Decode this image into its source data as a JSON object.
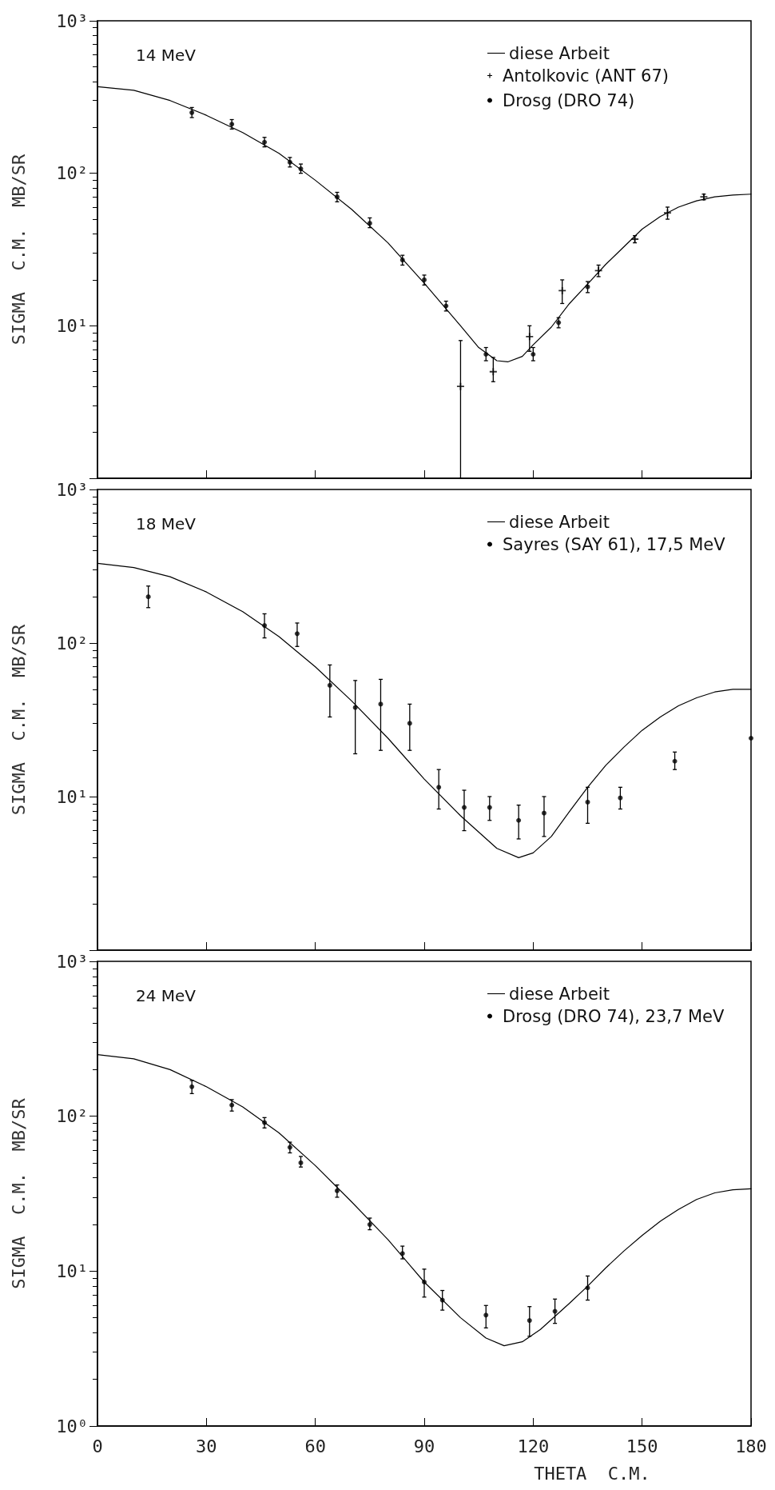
{
  "chart_data": [
    {
      "type": "scatter",
      "title": "14 MeV",
      "ylabel": "SIGMA  C.M.  MB/SR",
      "log": "y",
      "xlim": [
        0,
        180
      ],
      "xticks": [
        0,
        30,
        60,
        90,
        120,
        150,
        180
      ],
      "ylim": [
        1,
        1000
      ],
      "yticks": [
        {
          "value": 1,
          "label": null
        },
        {
          "value": 10,
          "label": "10¹"
        },
        {
          "value": 100,
          "label": "10²"
        },
        {
          "value": 1000,
          "label": "10³"
        }
      ],
      "tick_labels": "y",
      "grid": false,
      "legend": "top right",
      "series": [
        {
          "name": "diese Arbeit",
          "type": "line",
          "marker": "none",
          "line_style": "solid",
          "color": "#000000",
          "x": [
            0,
            10,
            20,
            30,
            40,
            50,
            60,
            70,
            80,
            90,
            100,
            105,
            110,
            113,
            117,
            120,
            125,
            130,
            135,
            140,
            145,
            150,
            155,
            160,
            165,
            170,
            175,
            180
          ],
          "values": [
            370,
            350,
            300,
            240,
            185,
            135,
            90,
            58,
            35,
            19,
            10,
            7.2,
            5.9,
            5.8,
            6.3,
            7.5,
            9.8,
            14,
            18.8,
            25.3,
            33,
            43,
            52,
            60,
            66,
            70,
            72,
            73
          ]
        },
        {
          "name": "Antolkovic (ANT 67)",
          "marker": "cross",
          "color": "#000000",
          "x": [
            100,
            109,
            119,
            128,
            138,
            148,
            157,
            167
          ],
          "values": [
            4,
            5,
            8.5,
            17,
            23,
            37,
            55,
            70
          ],
          "errors": [
            [
              1,
              8
            ],
            [
              4.3,
              6.2
            ],
            [
              6.8,
              10
            ],
            [
              14,
              20
            ],
            [
              21,
              25
            ],
            [
              35,
              39
            ],
            [
              50,
              60
            ],
            [
              67,
              73
            ]
          ]
        },
        {
          "name": "Drosg (DRO 74)",
          "marker": "circle",
          "color": "#000000",
          "x": [
            26,
            37,
            46,
            53,
            56,
            66,
            75,
            84,
            90,
            96,
            107,
            120,
            127,
            135
          ],
          "values": [
            250,
            210,
            160,
            118,
            107,
            70,
            47,
            27,
            20,
            13.5,
            6.5,
            6.5,
            10.5,
            18
          ],
          "errors": [
            [
              232,
              270
            ],
            [
              195,
              225
            ],
            [
              149,
              172
            ],
            [
              110,
              127
            ],
            [
              100,
              115
            ],
            [
              65,
              75
            ],
            [
              44,
              51
            ],
            [
              25,
              29
            ],
            [
              18.5,
              21.5
            ],
            [
              12.5,
              14.5
            ],
            [
              5.9,
              7.2
            ],
            [
              5.9,
              7.2
            ],
            [
              9.7,
              11.3
            ],
            [
              16.5,
              19.5
            ]
          ]
        }
      ]
    },
    {
      "type": "scatter",
      "title": "18 MeV",
      "ylabel": "SIGMA  C.M.  MB/SR",
      "log": "y",
      "xlim": [
        0,
        180
      ],
      "xticks": [
        0,
        30,
        60,
        90,
        120,
        150,
        180
      ],
      "ylim": [
        1,
        1000
      ],
      "yticks": [
        {
          "value": 1,
          "label": null
        },
        {
          "value": 10,
          "label": "10¹"
        },
        {
          "value": 100,
          "label": "10²"
        },
        {
          "value": 1000,
          "label": "10³"
        }
      ],
      "tick_labels": "y",
      "grid": false,
      "legend": "top right",
      "series": [
        {
          "name": "diese Arbeit",
          "type": "line",
          "marker": "none",
          "line_style": "solid",
          "color": "#000000",
          "x": [
            0,
            10,
            20,
            30,
            40,
            50,
            60,
            70,
            80,
            90,
            100,
            110,
            116,
            120,
            125,
            130,
            135,
            140,
            145,
            150,
            155,
            160,
            165,
            170,
            175,
            180
          ],
          "values": [
            330,
            310,
            270,
            215,
            160,
            110,
            70,
            42,
            24,
            13,
            7.5,
            4.6,
            4,
            4.3,
            5.5,
            8,
            11.5,
            16,
            21,
            27,
            33,
            39,
            44,
            48,
            50,
            50
          ]
        },
        {
          "name": "Sayres (SAY 61), 17,5 MeV",
          "marker": "circle",
          "color": "#000000",
          "x": [
            14,
            46,
            55,
            64,
            71,
            78,
            86,
            94,
            101,
            108,
            116,
            123,
            135,
            144,
            159,
            180
          ],
          "values": [
            200,
            130,
            115,
            53,
            38,
            40,
            30,
            11.5,
            8.5,
            8.5,
            7,
            7.8,
            9.2,
            9.8,
            17,
            24
          ],
          "errors": [
            [
              170,
              235
            ],
            [
              108,
              155
            ],
            [
              95,
              135
            ],
            [
              33,
              72
            ],
            [
              19,
              57
            ],
            [
              20,
              58
            ],
            [
              20,
              40
            ],
            [
              8.3,
              15
            ],
            [
              6,
              11
            ],
            [
              7,
              10
            ],
            [
              5.3,
              8.8
            ],
            [
              5.5,
              10
            ],
            [
              6.7,
              11.5
            ],
            [
              8.3,
              11.5
            ],
            [
              15,
              19.5
            ],
            null
          ]
        }
      ]
    },
    {
      "type": "scatter",
      "title": "24 MeV",
      "xlabel": "THETA  C.M.",
      "ylabel": "SIGMA  C.M.  MB/SR",
      "log": "y",
      "xlim": [
        0,
        180
      ],
      "xticks": [
        0,
        30,
        60,
        90,
        120,
        150,
        180
      ],
      "ylim": [
        1,
        1000
      ],
      "yticks": [
        {
          "value": 1,
          "label": "10⁰"
        },
        {
          "value": 10,
          "label": "10¹"
        },
        {
          "value": 100,
          "label": "10²"
        },
        {
          "value": 1000,
          "label": "10³"
        }
      ],
      "grid": false,
      "legend": "top right",
      "series": [
        {
          "name": "diese Arbeit",
          "type": "line",
          "marker": "none",
          "line_style": "solid",
          "color": "#000000",
          "x": [
            0,
            10,
            20,
            30,
            40,
            50,
            60,
            70,
            80,
            90,
            100,
            107,
            112,
            117,
            122,
            130,
            135,
            140,
            145,
            150,
            155,
            160,
            165,
            170,
            175,
            180
          ],
          "values": [
            250,
            235,
            200,
            155,
            115,
            78,
            48,
            28,
            16,
            8.5,
            5,
            3.7,
            3.3,
            3.5,
            4.2,
            6.2,
            8,
            10.5,
            13.5,
            17,
            21,
            25,
            29,
            32,
            33.5,
            34
          ]
        },
        {
          "name": "Drosg (DRO 74), 23,7 MeV",
          "marker": "circle",
          "color": "#000000",
          "x": [
            26,
            37,
            46,
            53,
            56,
            66,
            75,
            84,
            90,
            95,
            107,
            119,
            126,
            135
          ],
          "values": [
            155,
            118,
            91,
            63,
            50,
            33,
            20,
            13,
            8.5,
            6.5,
            5.2,
            4.8,
            5.5,
            7.8
          ],
          "errors": [
            [
              140,
              170
            ],
            [
              108,
              128
            ],
            [
              84,
              98
            ],
            [
              58,
              68
            ],
            [
              47,
              55
            ],
            [
              30,
              36
            ],
            [
              18.5,
              22
            ],
            [
              12,
              14.5
            ],
            [
              6.8,
              10.3
            ],
            [
              5.6,
              7.5
            ],
            [
              4.3,
              6
            ],
            [
              3.8,
              5.9
            ],
            [
              4.6,
              6.6
            ],
            [
              6.5,
              9.3
            ]
          ]
        }
      ]
    }
  ]
}
